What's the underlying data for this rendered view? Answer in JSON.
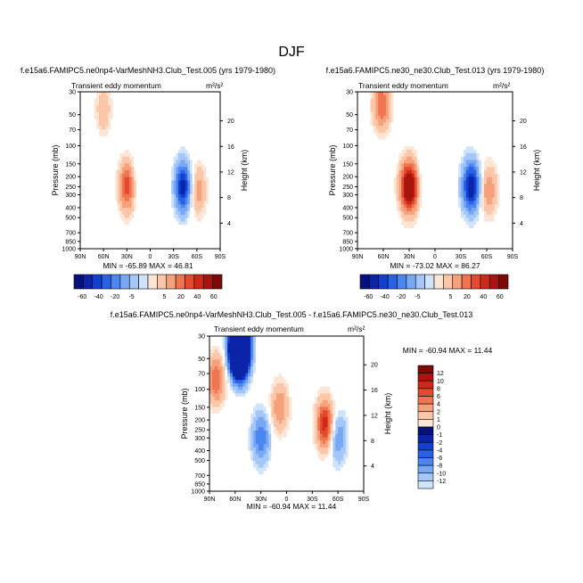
{
  "figure_title": "DJF",
  "colors": {
    "neg": [
      "#08107a",
      "#0b24a8",
      "#1340d0",
      "#2a62e6",
      "#4d86ef",
      "#78a8f4",
      "#a4c6f8",
      "#cfe3fb"
    ],
    "pos": [
      "#fde5d6",
      "#fbc7a8",
      "#f6a07c",
      "#ef7550",
      "#e54a2e",
      "#cc2a18",
      "#a81510",
      "#7e0a08"
    ]
  },
  "chart_data": [
    {
      "type": "heatmap",
      "title": "f.e15a6.FAMIPC5.ne0np4-VarMeshNH3.Club_Test.005 (yrs 1979-1980)",
      "subtitle": "Transient eddy momentum",
      "units": "m²/s²",
      "ylabel": "Pressure (mb)",
      "y2label": "Height (km)",
      "x_ticks": [
        "90N",
        "60N",
        "30N",
        "0",
        "30S",
        "60S",
        "90S"
      ],
      "y_ticks": [
        "30",
        "50",
        "70",
        "100",
        "150",
        "200",
        "250",
        "300",
        "400",
        "500",
        "700",
        "850",
        "1000"
      ],
      "y2_ticks": [
        "4",
        "8",
        "12",
        "16",
        "20"
      ],
      "stats": "MIN = -65.89   MAX = 46.81",
      "levels": [
        "-60",
        "-40",
        "-20",
        "-5",
        "",
        "5",
        "20",
        "40",
        "60"
      ],
      "features": [
        {
          "lat": 30,
          "p": 250,
          "value": 46.8
        },
        {
          "lat": -42,
          "p": 250,
          "value": -65.9
        },
        {
          "lat": -62,
          "p": 270,
          "value": 25
        },
        {
          "lat": 60,
          "p": 45,
          "value": 18
        },
        {
          "lat": 15,
          "p": 200,
          "value": -6
        }
      ]
    },
    {
      "type": "heatmap",
      "title": "f.e15a6.FAMIPC5.ne30_ne30.Club_Test.013 (yrs 1979-1980)",
      "subtitle": "Transient eddy momentum",
      "units": "m²/s²",
      "ylabel": "Pressure (mb)",
      "y2label": "Height (km)",
      "x_ticks": [
        "90N",
        "60N",
        "30N",
        "0",
        "30S",
        "60S",
        "90S"
      ],
      "y_ticks": [
        "30",
        "50",
        "70",
        "100",
        "150",
        "200",
        "250",
        "300",
        "400",
        "500",
        "700",
        "850",
        "1000"
      ],
      "y2_ticks": [
        "4",
        "8",
        "12",
        "16",
        "20"
      ],
      "stats": "MIN = -73.02   MAX = 86.27",
      "levels": [
        "-60",
        "-40",
        "-20",
        "-5",
        "",
        "5",
        "20",
        "40",
        "60"
      ],
      "features": [
        {
          "lat": 30,
          "p": 250,
          "value": 86.3
        },
        {
          "lat": -42,
          "p": 250,
          "value": -73.0
        },
        {
          "lat": -62,
          "p": 270,
          "value": 30
        },
        {
          "lat": 62,
          "p": 40,
          "value": 40
        },
        {
          "lat": 15,
          "p": 200,
          "value": -6
        }
      ]
    },
    {
      "type": "heatmap",
      "title": "f.e15a6.FAMIPC5.ne0np4-VarMeshNH3.Club_Test.005 - f.e15a6.FAMIPC5.ne30_ne30.Club_Test.013",
      "subtitle": "Transient eddy momentum",
      "units": "m²/s²",
      "ylabel": "Pressure (mb)",
      "y2label": "Height (km)",
      "x_ticks": [
        "90N",
        "60N",
        "30N",
        "0",
        "30S",
        "60S",
        "90S"
      ],
      "y_ticks": [
        "30",
        "50",
        "70",
        "100",
        "150",
        "200",
        "250",
        "300",
        "400",
        "500",
        "700",
        "850",
        "1000"
      ],
      "y2_ticks": [
        "4",
        "8",
        "12",
        "16",
        "20"
      ],
      "stats": "MIN = -60.94   MAX = 11.44",
      "levels": [
        "12",
        "10",
        "8",
        "6",
        "4",
        "2",
        "1",
        "0",
        "-1",
        "-2",
        "-4",
        "-6",
        "-8",
        "-10",
        "-12"
      ],
      "features": [
        {
          "lat": 55,
          "p": 40,
          "value": -60.9
        },
        {
          "lat": 82,
          "p": 80,
          "value": 8
        },
        {
          "lat": 30,
          "p": 300,
          "value": -8
        },
        {
          "lat": 8,
          "p": 150,
          "value": 6
        },
        {
          "lat": -45,
          "p": 220,
          "value": 11.4
        },
        {
          "lat": -60,
          "p": 300,
          "value": -6
        }
      ]
    }
  ]
}
